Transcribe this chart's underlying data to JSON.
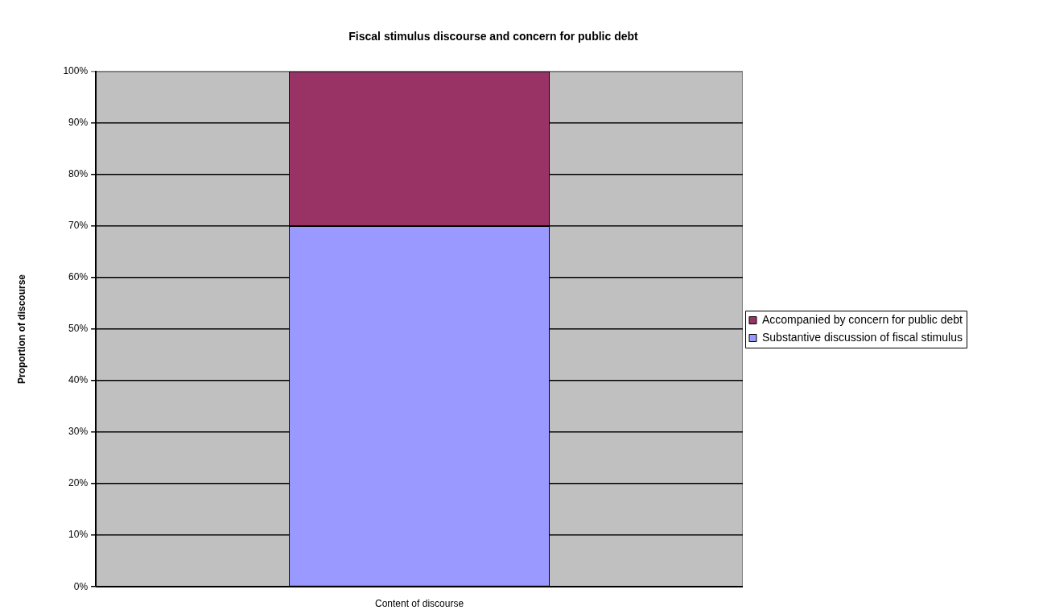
{
  "chart_data": {
    "type": "bar",
    "title": "Fiscal stimulus discourse and concern for public debt",
    "xlabel": "Content of discourse",
    "ylabel": "Proportion of discourse",
    "categories": [
      null
    ],
    "series": [
      {
        "name": "Substantive discussion of fiscal stimulus",
        "color": "#9999ff",
        "values": [
          70
        ]
      },
      {
        "name": "Accompanied by concern for public debt",
        "color": "#993366",
        "values": [
          30
        ]
      }
    ],
    "stacked": true,
    "ylim": [
      0,
      100
    ],
    "yticks": [
      {
        "value": 0,
        "label": "0%"
      },
      {
        "value": 10,
        "label": "10%"
      },
      {
        "value": 20,
        "label": "20%"
      },
      {
        "value": 30,
        "label": "30%"
      },
      {
        "value": 40,
        "label": "40%"
      },
      {
        "value": 50,
        "label": "50%"
      },
      {
        "value": 60,
        "label": "60%"
      },
      {
        "value": 70,
        "label": "70%"
      },
      {
        "value": 80,
        "label": "80%"
      },
      {
        "value": 90,
        "label": "90%"
      },
      {
        "value": 100,
        "label": "100%"
      }
    ],
    "grid": "y",
    "legend": "right"
  }
}
